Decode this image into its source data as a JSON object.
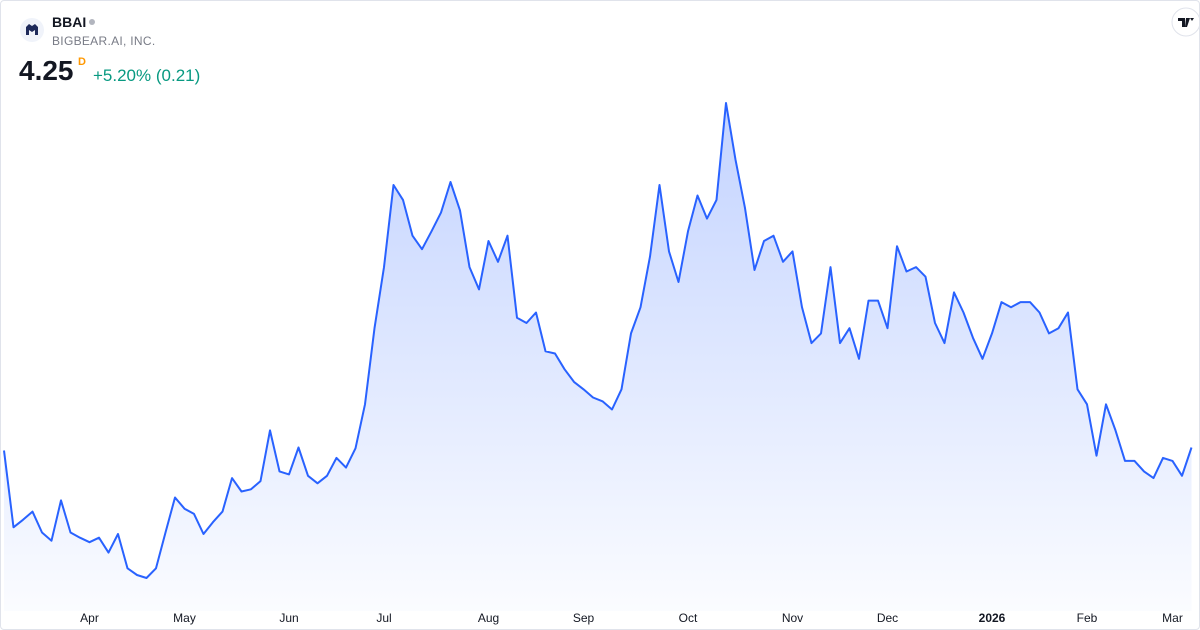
{
  "header": {
    "symbol": "BBAI",
    "name": "BIGBEAR.AI, INC.",
    "price": "4.25",
    "interval": "D",
    "change": "+5.20% (0.21)"
  },
  "chart_data": {
    "type": "area",
    "color": "#2962ff",
    "categories": [
      null,
      null,
      null,
      null,
      null,
      null,
      null,
      null,
      null,
      "Apr",
      null,
      null,
      null,
      null,
      null,
      null,
      null,
      null,
      null,
      "May",
      null,
      null,
      null,
      null,
      null,
      null,
      null,
      null,
      null,
      null,
      "Jun",
      null,
      null,
      null,
      null,
      null,
      null,
      null,
      null,
      null,
      "Jul",
      null,
      null,
      null,
      null,
      null,
      null,
      null,
      null,
      null,
      null,
      "Aug",
      null,
      null,
      null,
      null,
      null,
      null,
      null,
      null,
      null,
      "Sep",
      null,
      null,
      null,
      null,
      null,
      null,
      null,
      null,
      null,
      null,
      "Oct",
      null,
      null,
      null,
      null,
      null,
      null,
      null,
      null,
      null,
      null,
      "Nov",
      null,
      null,
      null,
      null,
      null,
      null,
      null,
      null,
      null,
      "Dec",
      null,
      null,
      null,
      null,
      null,
      null,
      null,
      null,
      null,
      null,
      "2026",
      null,
      null,
      null,
      null,
      null,
      null,
      null,
      null,
      null,
      "Feb",
      null,
      null,
      null,
      null,
      null,
      null,
      null,
      null,
      "Mar",
      null,
      null
    ],
    "values": [
      4.21,
      3.18,
      3.28,
      3.39,
      3.11,
      3.0,
      3.54,
      3.11,
      3.04,
      2.98,
      3.04,
      2.84,
      3.09,
      2.63,
      2.54,
      2.5,
      2.63,
      3.11,
      3.58,
      3.43,
      3.36,
      3.09,
      3.25,
      3.39,
      3.84,
      3.66,
      3.69,
      3.8,
      4.48,
      3.93,
      3.89,
      4.25,
      3.87,
      3.77,
      3.87,
      4.11,
      3.98,
      4.24,
      4.83,
      5.85,
      6.67,
      7.77,
      7.57,
      7.09,
      6.91,
      7.15,
      7.4,
      7.81,
      7.43,
      6.67,
      6.37,
      7.02,
      6.74,
      7.09,
      5.99,
      5.92,
      6.06,
      5.54,
      5.51,
      5.3,
      5.13,
      5.03,
      4.92,
      4.87,
      4.76,
      5.03,
      5.78,
      6.13,
      6.81,
      7.77,
      6.88,
      6.47,
      7.15,
      7.63,
      7.32,
      7.57,
      8.87,
      8.11,
      7.46,
      6.63,
      7.02,
      7.09,
      6.74,
      6.88,
      6.13,
      5.65,
      5.78,
      6.67,
      5.65,
      5.85,
      5.44,
      6.22,
      6.22,
      5.85,
      6.95,
      6.61,
      6.67,
      6.54,
      5.92,
      5.65,
      6.33,
      6.06,
      5.72,
      5.44,
      5.78,
      6.2,
      6.13,
      6.2,
      6.2,
      6.06,
      5.78,
      5.85,
      6.06,
      5.03,
      4.83,
      4.14,
      4.83,
      4.48,
      4.07,
      4.07,
      3.93,
      3.84,
      4.11,
      4.07,
      3.87,
      4.25
    ]
  }
}
